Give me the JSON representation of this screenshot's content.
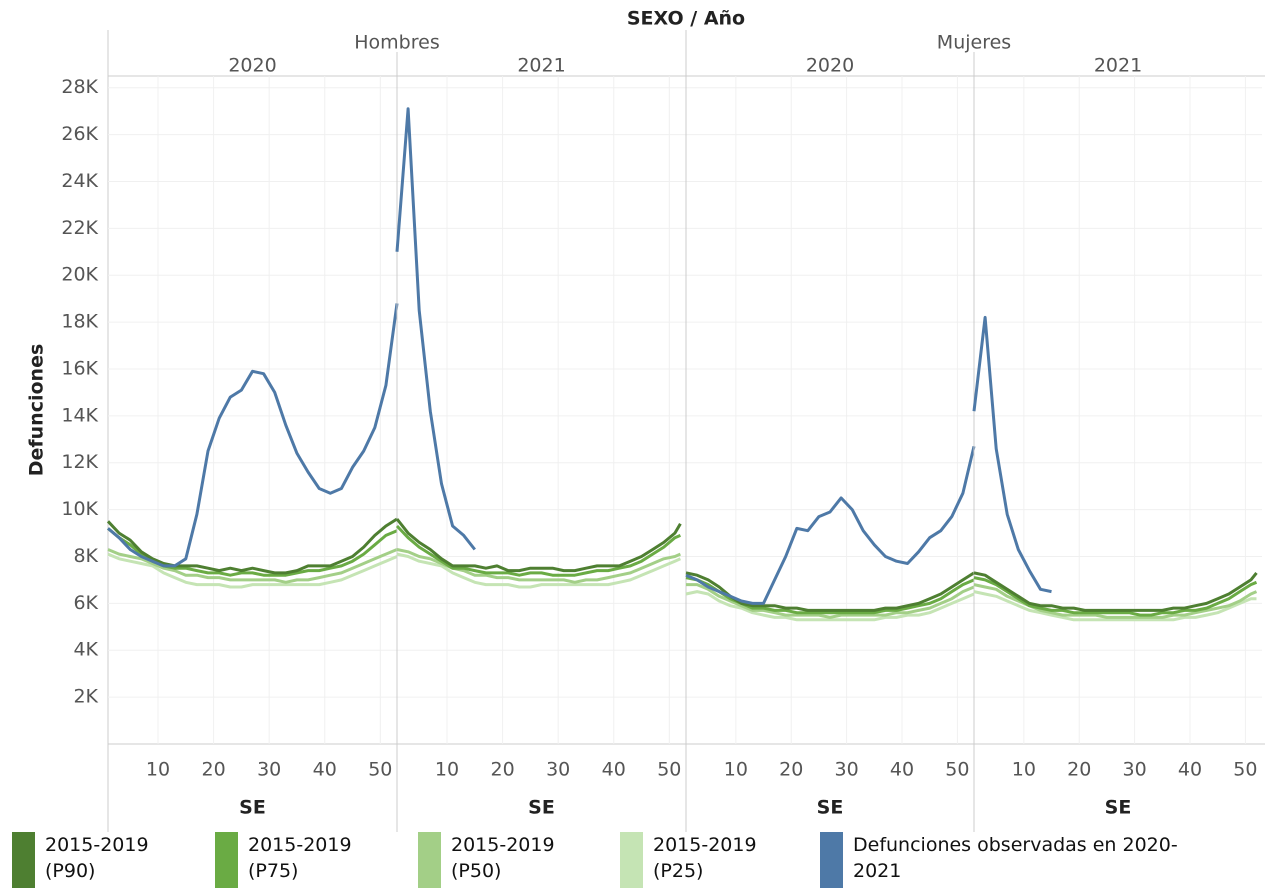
{
  "chart_data": {
    "type": "line",
    "title": "SEXO / Año",
    "y_label": "Defunciones",
    "ylim": [
      0,
      28500
    ],
    "yticks": [
      {
        "value": 2000,
        "label": "2K"
      },
      {
        "value": 4000,
        "label": "4K"
      },
      {
        "value": 6000,
        "label": "6K"
      },
      {
        "value": 8000,
        "label": "8K"
      },
      {
        "value": 10000,
        "label": "10K"
      },
      {
        "value": 12000,
        "label": "12K"
      },
      {
        "value": 14000,
        "label": "14K"
      },
      {
        "value": 16000,
        "label": "16K"
      },
      {
        "value": 18000,
        "label": "18K"
      },
      {
        "value": 20000,
        "label": "20K"
      },
      {
        "value": 22000,
        "label": "22K"
      },
      {
        "value": 24000,
        "label": "24K"
      },
      {
        "value": 26000,
        "label": "26K"
      },
      {
        "value": 28000,
        "label": "28K"
      }
    ],
    "xlim": [
      1,
      53
    ],
    "xticks": [
      10,
      20,
      30,
      40,
      50
    ],
    "grid": true,
    "series": [
      {
        "name": "2015-2019 (P90)",
        "color": "#4e7f31"
      },
      {
        "name": "2015-2019 (P75)",
        "color": "#6aab44"
      },
      {
        "name": "2015-2019 (P50)",
        "color": "#a3cf87"
      },
      {
        "name": "2015-2019 (P25)",
        "color": "#c5e4b4"
      },
      {
        "name": "Defunciones observadas en 2020-2021",
        "color": "#4e79a7"
      }
    ],
    "groups": [
      {
        "name": "Hombres",
        "panels": [
          {
            "year": "2020",
            "x_label": "SE",
            "x": [
              1,
              3,
              5,
              7,
              9,
              11,
              13,
              15,
              17,
              19,
              21,
              23,
              25,
              27,
              29,
              31,
              33,
              35,
              37,
              39,
              41,
              43,
              45,
              47,
              49,
              51,
              53
            ],
            "series": [
              {
                "values": [
                  9500,
                  9000,
                  8700,
                  8200,
                  7900,
                  7700,
                  7600,
                  7600,
                  7600,
                  7500,
                  7400,
                  7500,
                  7400,
                  7500,
                  7400,
                  7300,
                  7300,
                  7400,
                  7600,
                  7600,
                  7600,
                  7800,
                  8000,
                  8400,
                  8900,
                  9300,
                  9600
                ]
              },
              {
                "values": [
                  9200,
                  8800,
                  8500,
                  8100,
                  7800,
                  7600,
                  7500,
                  7500,
                  7400,
                  7300,
                  7300,
                  7200,
                  7300,
                  7300,
                  7200,
                  7200,
                  7200,
                  7300,
                  7400,
                  7400,
                  7500,
                  7600,
                  7800,
                  8100,
                  8500,
                  8900,
                  9100
                ]
              },
              {
                "values": [
                  8300,
                  8100,
                  8000,
                  7900,
                  7700,
                  7500,
                  7400,
                  7200,
                  7200,
                  7100,
                  7100,
                  7000,
                  7000,
                  7000,
                  7000,
                  7000,
                  6900,
                  7000,
                  7000,
                  7100,
                  7200,
                  7300,
                  7500,
                  7700,
                  7900,
                  8100,
                  8300
                ]
              },
              {
                "values": [
                  8100,
                  7900,
                  7800,
                  7700,
                  7600,
                  7300,
                  7100,
                  6900,
                  6800,
                  6800,
                  6800,
                  6700,
                  6700,
                  6800,
                  6800,
                  6800,
                  6800,
                  6800,
                  6800,
                  6800,
                  6900,
                  7000,
                  7200,
                  7400,
                  7600,
                  7800,
                  8000
                ]
              },
              {
                "values": [
                  9200,
                  8800,
                  8300,
                  8000,
                  7800,
                  7600,
                  7600,
                  7900,
                  9800,
                  12500,
                  13900,
                  14800,
                  15100,
                  15900,
                  15800,
                  15000,
                  13600,
                  12400,
                  11600,
                  10900,
                  10700,
                  10900,
                  11800,
                  12500,
                  13500,
                  15300,
                  18800
                ]
              }
            ]
          },
          {
            "year": "2021",
            "x_label": "SE",
            "x": [
              1,
              3,
              5,
              7,
              9,
              11,
              13,
              15,
              17,
              19,
              21,
              23,
              25,
              27,
              29,
              31,
              33,
              35,
              37,
              39,
              41,
              43,
              45,
              47,
              49,
              51,
              52
            ],
            "series": [
              {
                "values": [
                  9600,
                  9000,
                  8600,
                  8300,
                  7900,
                  7600,
                  7600,
                  7600,
                  7500,
                  7600,
                  7400,
                  7400,
                  7500,
                  7500,
                  7500,
                  7400,
                  7400,
                  7500,
                  7600,
                  7600,
                  7600,
                  7800,
                  8000,
                  8300,
                  8600,
                  9000,
                  9400
                ]
              },
              {
                "values": [
                  9300,
                  8800,
                  8400,
                  8100,
                  7800,
                  7500,
                  7500,
                  7400,
                  7300,
                  7300,
                  7300,
                  7200,
                  7300,
                  7300,
                  7200,
                  7200,
                  7200,
                  7300,
                  7400,
                  7400,
                  7500,
                  7600,
                  7800,
                  8100,
                  8400,
                  8800,
                  8900
                ]
              },
              {
                "values": [
                  8300,
                  8200,
                  8000,
                  7900,
                  7700,
                  7500,
                  7400,
                  7200,
                  7200,
                  7100,
                  7100,
                  7000,
                  7000,
                  7000,
                  7000,
                  7000,
                  6900,
                  7000,
                  7000,
                  7100,
                  7200,
                  7300,
                  7500,
                  7700,
                  7900,
                  8000,
                  8100
                ]
              },
              {
                "values": [
                  8100,
                  8000,
                  7800,
                  7700,
                  7600,
                  7300,
                  7100,
                  6900,
                  6800,
                  6800,
                  6800,
                  6700,
                  6700,
                  6800,
                  6800,
                  6800,
                  6800,
                  6800,
                  6800,
                  6800,
                  6900,
                  7000,
                  7200,
                  7400,
                  7600,
                  7800,
                  7900
                ]
              },
              {
                "values": [
                  21000,
                  27100,
                  18500,
                  14200,
                  11100,
                  9300,
                  8900,
                  8300,
                  null,
                  null,
                  null,
                  null,
                  null,
                  null,
                  null,
                  null,
                  null,
                  null,
                  null,
                  null,
                  null,
                  null,
                  null,
                  null,
                  null,
                  null,
                  null
                ]
              }
            ]
          }
        ]
      },
      {
        "name": "Mujeres",
        "panels": [
          {
            "year": "2020",
            "x_label": "SE",
            "x": [
              1,
              3,
              5,
              7,
              9,
              11,
              13,
              15,
              17,
              19,
              21,
              23,
              25,
              27,
              29,
              31,
              33,
              35,
              37,
              39,
              41,
              43,
              45,
              47,
              49,
              51,
              53
            ],
            "series": [
              {
                "values": [
                  7300,
                  7200,
                  7000,
                  6700,
                  6300,
                  6000,
                  5900,
                  5900,
                  5900,
                  5800,
                  5800,
                  5700,
                  5700,
                  5700,
                  5700,
                  5700,
                  5700,
                  5700,
                  5800,
                  5800,
                  5900,
                  6000,
                  6200,
                  6400,
                  6700,
                  7000,
                  7300
                ]
              },
              {
                "values": [
                  7100,
                  7000,
                  6800,
                  6500,
                  6200,
                  6000,
                  5800,
                  5800,
                  5700,
                  5700,
                  5600,
                  5600,
                  5600,
                  5600,
                  5600,
                  5600,
                  5600,
                  5600,
                  5700,
                  5700,
                  5800,
                  5900,
                  6000,
                  6200,
                  6500,
                  6800,
                  7000
                ]
              },
              {
                "values": [
                  6800,
                  6800,
                  6600,
                  6300,
                  6100,
                  5900,
                  5700,
                  5700,
                  5600,
                  5500,
                  5500,
                  5500,
                  5500,
                  5400,
                  5500,
                  5500,
                  5500,
                  5500,
                  5500,
                  5600,
                  5600,
                  5700,
                  5800,
                  6000,
                  6200,
                  6500,
                  6700
                ]
              },
              {
                "values": [
                  6400,
                  6500,
                  6400,
                  6100,
                  5900,
                  5800,
                  5600,
                  5500,
                  5400,
                  5400,
                  5300,
                  5300,
                  5300,
                  5300,
                  5300,
                  5300,
                  5300,
                  5300,
                  5400,
                  5400,
                  5500,
                  5500,
                  5600,
                  5800,
                  6000,
                  6200,
                  6400
                ]
              },
              {
                "values": [
                  7200,
                  7000,
                  6700,
                  6500,
                  6300,
                  6100,
                  6000,
                  6000,
                  7000,
                  8000,
                  9200,
                  9100,
                  9700,
                  9900,
                  10500,
                  10000,
                  9100,
                  8500,
                  8000,
                  7800,
                  7700,
                  8200,
                  8800,
                  9100,
                  9700,
                  10700,
                  12700
                ]
              }
            ]
          },
          {
            "year": "2021",
            "x_label": "SE",
            "x": [
              1,
              3,
              5,
              7,
              9,
              11,
              13,
              15,
              17,
              19,
              21,
              23,
              25,
              27,
              29,
              31,
              33,
              35,
              37,
              39,
              41,
              43,
              45,
              47,
              49,
              51,
              52
            ],
            "series": [
              {
                "values": [
                  7300,
                  7200,
                  6900,
                  6600,
                  6300,
                  6000,
                  5900,
                  5900,
                  5800,
                  5800,
                  5700,
                  5700,
                  5700,
                  5700,
                  5700,
                  5700,
                  5700,
                  5700,
                  5800,
                  5800,
                  5900,
                  6000,
                  6200,
                  6400,
                  6700,
                  7000,
                  7300
                ]
              },
              {
                "values": [
                  7100,
                  7000,
                  6800,
                  6500,
                  6200,
                  5900,
                  5800,
                  5700,
                  5700,
                  5600,
                  5600,
                  5600,
                  5600,
                  5600,
                  5600,
                  5500,
                  5500,
                  5600,
                  5600,
                  5700,
                  5700,
                  5800,
                  6000,
                  6200,
                  6500,
                  6800,
                  6900
                ]
              },
              {
                "values": [
                  6800,
                  6700,
                  6600,
                  6300,
                  6100,
                  5900,
                  5700,
                  5600,
                  5500,
                  5500,
                  5500,
                  5500,
                  5400,
                  5400,
                  5400,
                  5400,
                  5400,
                  5400,
                  5500,
                  5500,
                  5600,
                  5700,
                  5800,
                  5900,
                  6100,
                  6400,
                  6500
                ]
              },
              {
                "values": [
                  6500,
                  6400,
                  6300,
                  6100,
                  5900,
                  5700,
                  5600,
                  5500,
                  5400,
                  5300,
                  5300,
                  5300,
                  5300,
                  5300,
                  5300,
                  5300,
                  5300,
                  5300,
                  5300,
                  5400,
                  5400,
                  5500,
                  5600,
                  5800,
                  6000,
                  6200,
                  6200
                ]
              },
              {
                "values": [
                  14200,
                  18200,
                  12600,
                  9800,
                  8300,
                  7400,
                  6600,
                  6500,
                  null,
                  null,
                  null,
                  null,
                  null,
                  null,
                  null,
                  null,
                  null,
                  null,
                  null,
                  null,
                  null,
                  null,
                  null,
                  null,
                  null,
                  null,
                  null
                ]
              }
            ]
          }
        ]
      }
    ]
  }
}
